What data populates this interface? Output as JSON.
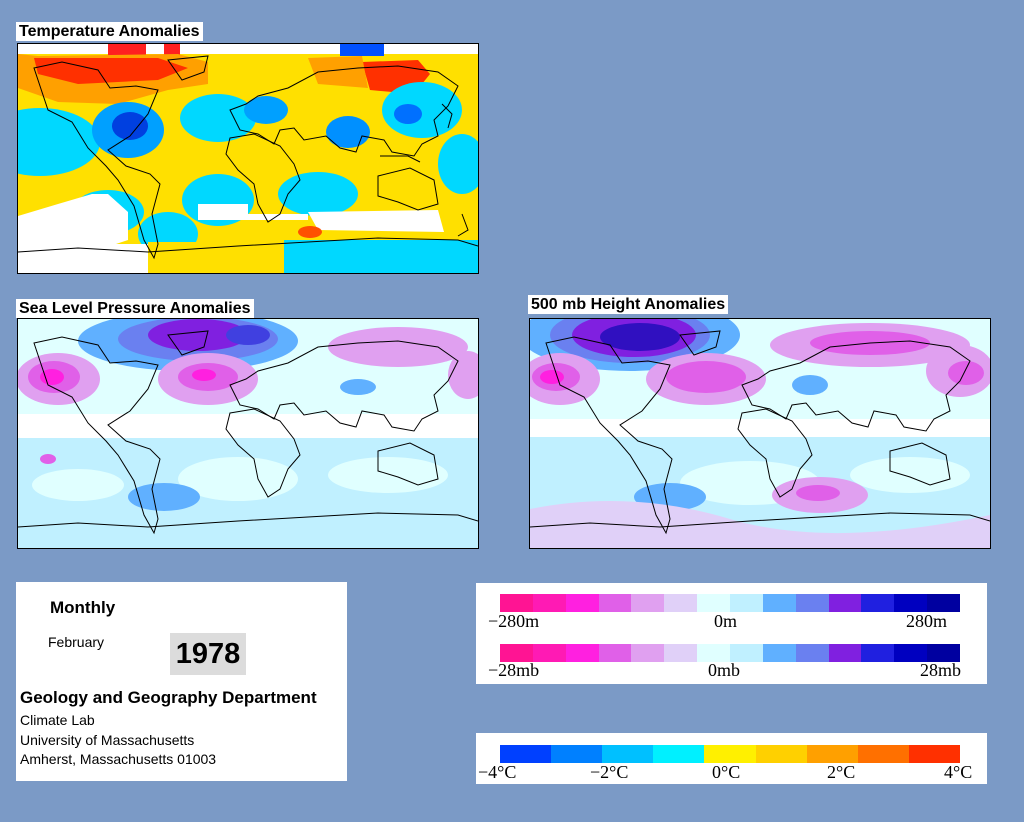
{
  "maps": {
    "temperature": {
      "title": "Temperature Anomalies"
    },
    "slp": {
      "title": "Sea Level Pressure Anomalies"
    },
    "height": {
      "title": "500 mb Height Anomalies"
    }
  },
  "info": {
    "frequency": "Monthly",
    "month": "February",
    "year": "1978",
    "department": "Geology and Geography Department",
    "lab": "Climate Lab",
    "university": "University of Massachusetts",
    "address": "Amherst, Massachusetts 01003"
  },
  "legends": {
    "height": {
      "min": "−280m",
      "mid": "0m",
      "max": "280m"
    },
    "pressure": {
      "min": "−28mb",
      "mid": "0mb",
      "max": "28mb"
    },
    "temperature": {
      "labels": [
        "−4°C",
        "−2°C",
        "0°C",
        "2°C",
        "4°C"
      ]
    }
  },
  "colors": {
    "background": "#7b9ac6",
    "pressure_scale": [
      "#ff1493",
      "#ff1ab4",
      "#ff20e0",
      "#e060e8",
      "#e0a0f0",
      "#e0d0f8",
      "#e0ffff",
      "#c0f0ff",
      "#60b0ff",
      "#6a80f0",
      "#8020e0",
      "#2020e0",
      "#0000c0",
      "#0000a0"
    ],
    "temperature_scale": [
      "#0040ff",
      "#0080ff",
      "#00c0ff",
      "#00f0ff",
      "#fff000",
      "#ffd000",
      "#ffa000",
      "#ff7000",
      "#ff3000"
    ]
  }
}
